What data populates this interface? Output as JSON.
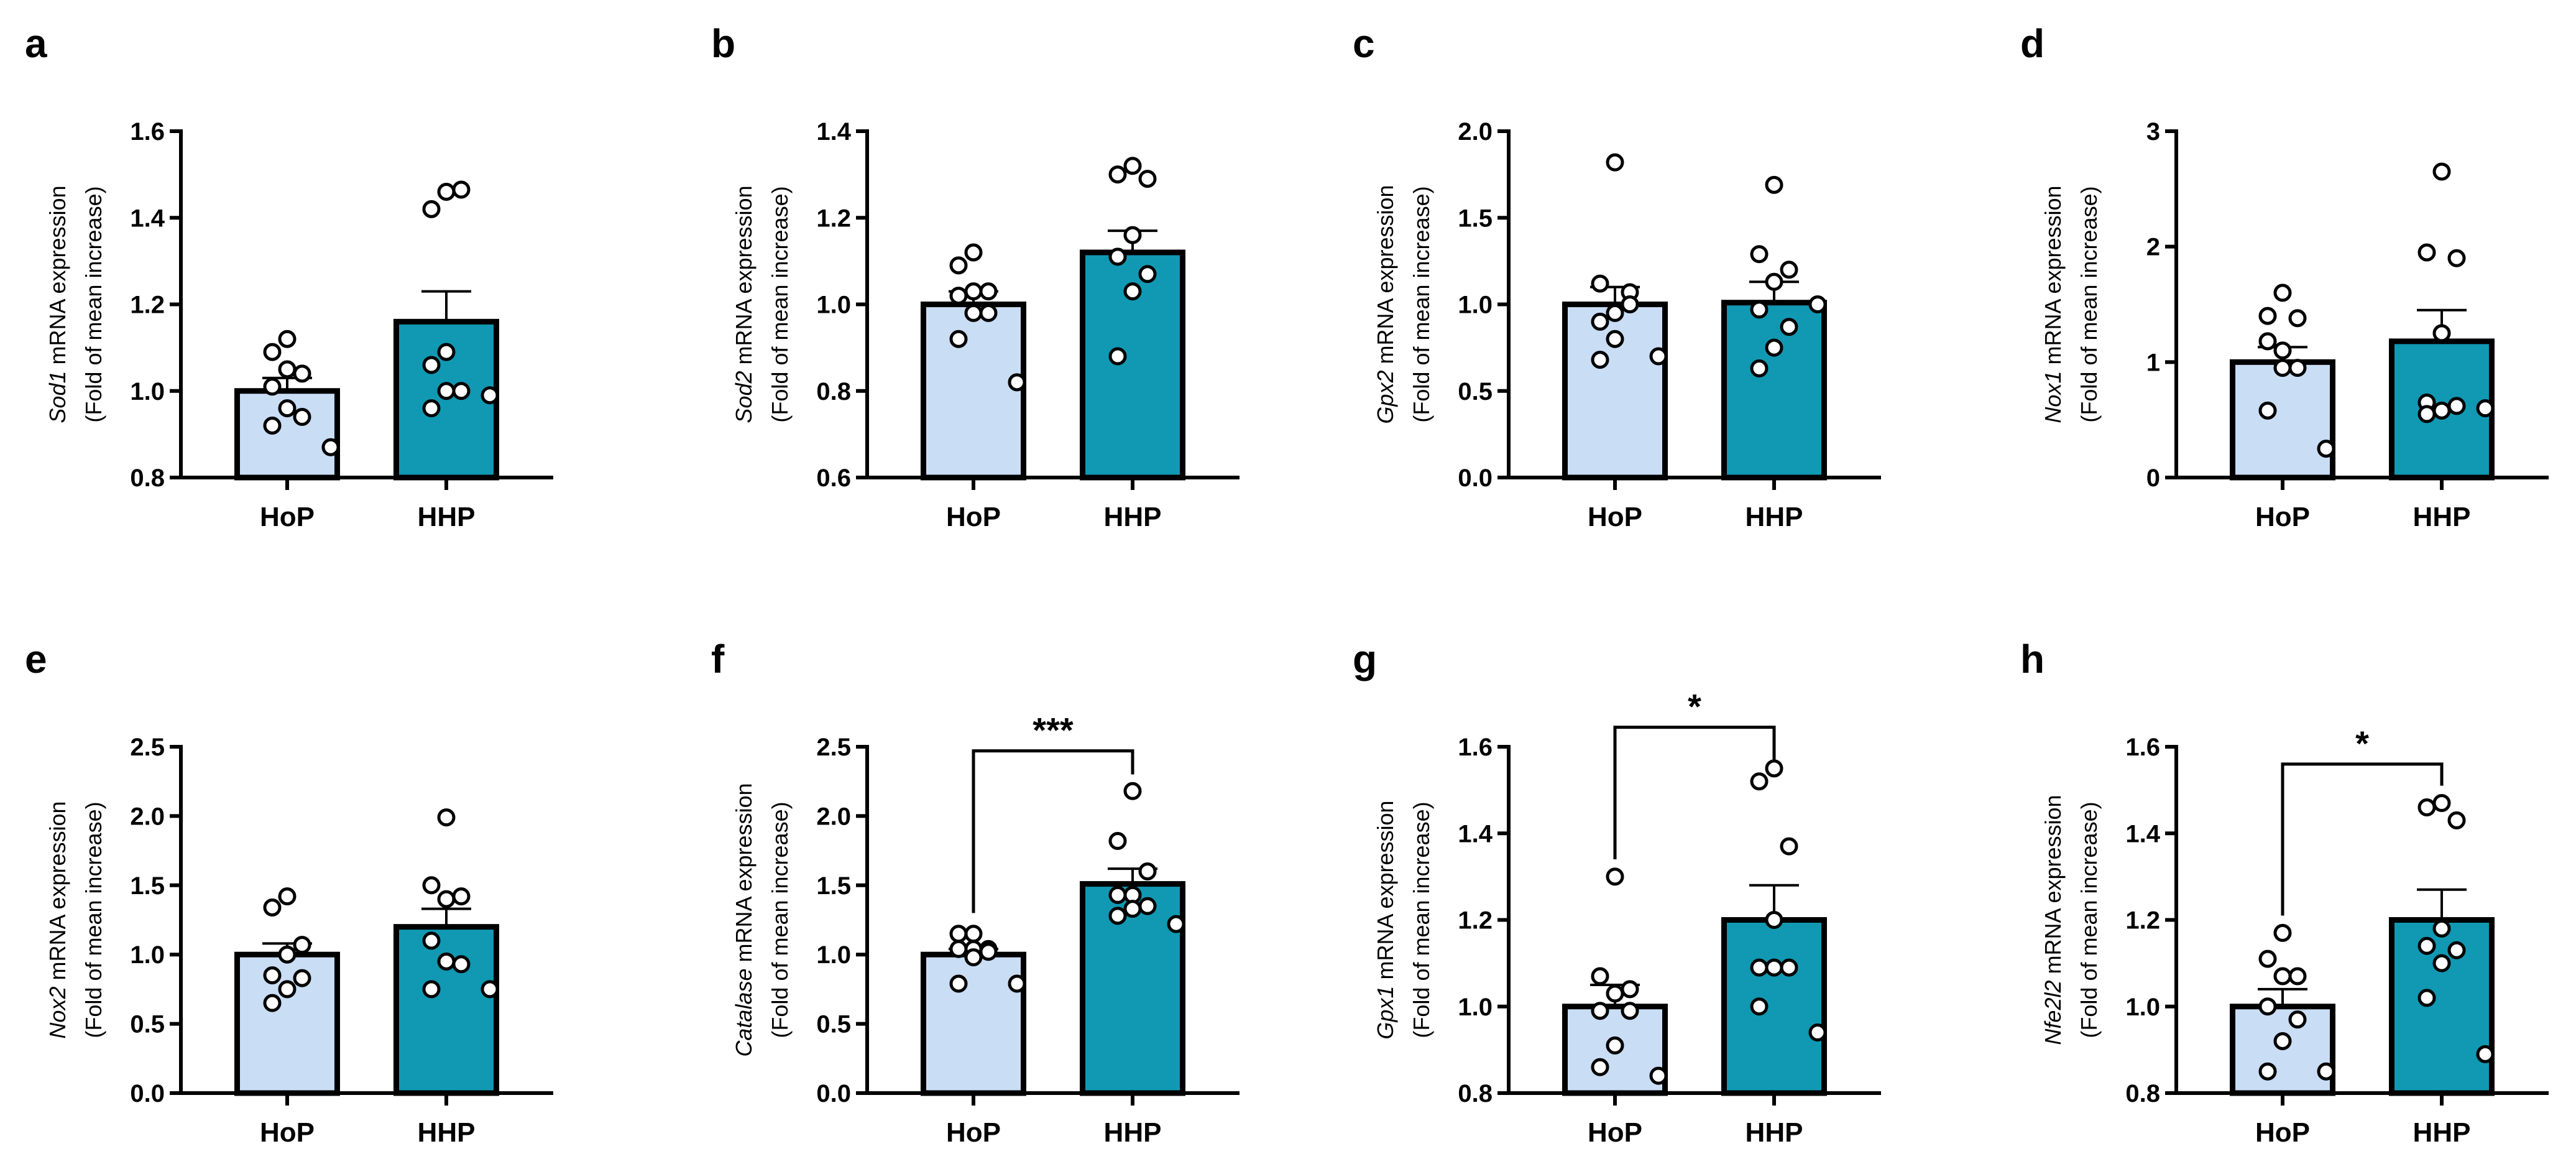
{
  "colors": {
    "HoP": "#c9ddf5",
    "HHP": "#1199b3",
    "axis": "#000000",
    "point_fill": "#ffffff"
  },
  "chart_data": [
    {
      "panel": "a",
      "type": "bar",
      "gene": "Sod1",
      "ylabel_suffix": " mRNA expression",
      "ylabel_line2": "(Fold of mean increase)",
      "categories": [
        "HoP",
        "HHP"
      ],
      "ylim": [
        0.8,
        1.6
      ],
      "yticks": [
        "0.8",
        "1.0",
        "1.2",
        "1.4",
        "1.6"
      ],
      "ytick_values": [
        0.8,
        1.0,
        1.2,
        1.4,
        1.6
      ],
      "means": [
        1.0,
        1.16
      ],
      "sem_upper": [
        1.03,
        1.23
      ],
      "points": [
        [
          1.12,
          1.09,
          1.04,
          1.05,
          1.01,
          0.94,
          0.96,
          0.92,
          0.87
        ],
        [
          1.46,
          1.42,
          1.465,
          1.09,
          1.06,
          1.0,
          1.0,
          0.96,
          0.99
        ]
      ],
      "significance": null
    },
    {
      "panel": "b",
      "type": "bar",
      "gene": "Sod2",
      "ylabel_suffix": " mRNA expression",
      "ylabel_line2": "(Fold of mean increase)",
      "categories": [
        "HoP",
        "HHP"
      ],
      "ylim": [
        0.6,
        1.4
      ],
      "yticks": [
        "0.6",
        "0.8",
        "1.0",
        "1.2",
        "1.4"
      ],
      "ytick_values": [
        0.6,
        0.8,
        1.0,
        1.2,
        1.4
      ],
      "means": [
        1.0,
        1.12
      ],
      "sem_upper": [
        1.03,
        1.17
      ],
      "points": [
        [
          1.12,
          1.09,
          1.03,
          1.03,
          1.02,
          0.98,
          0.98,
          0.92,
          0.82
        ],
        [
          1.32,
          1.3,
          1.29,
          1.16,
          1.11,
          1.07,
          1.03,
          0.88
        ]
      ],
      "significance": null
    },
    {
      "panel": "c",
      "type": "bar",
      "gene": "Gpx2",
      "ylabel_suffix": " mRNA expression",
      "ylabel_line2": "(Fold of mean increase)",
      "categories": [
        "HoP",
        "HHP"
      ],
      "ylim": [
        0,
        2.0
      ],
      "yticks": [
        "0.0",
        "0.5",
        "1.0",
        "1.5",
        "2.0"
      ],
      "ytick_values": [
        0,
        0.5,
        1.0,
        1.5,
        2.0
      ],
      "means": [
        1.0,
        1.01
      ],
      "sem_upper": [
        1.1,
        1.13
      ],
      "points": [
        [
          1.82,
          1.12,
          1.07,
          0.95,
          0.9,
          1.0,
          0.8,
          0.68,
          0.7
        ],
        [
          1.69,
          1.29,
          1.2,
          1.13,
          0.97,
          0.87,
          0.75,
          0.63,
          1.0
        ]
      ],
      "significance": null
    },
    {
      "panel": "d",
      "type": "bar",
      "gene": "Nox1",
      "ylabel_suffix": " mRNA expression",
      "ylabel_line2": "(Fold of mean increase)",
      "categories": [
        "HoP",
        "HHP"
      ],
      "ylim": [
        0,
        3
      ],
      "yticks": [
        "0",
        "1",
        "2",
        "3"
      ],
      "ytick_values": [
        0,
        1,
        2,
        3
      ],
      "means": [
        1.0,
        1.18
      ],
      "sem_upper": [
        1.13,
        1.45
      ],
      "points": [
        [
          1.6,
          1.4,
          1.38,
          1.1,
          1.18,
          0.95,
          0.95,
          0.58,
          0.25
        ],
        [
          2.65,
          1.95,
          1.9,
          1.25,
          0.65,
          0.62,
          0.58,
          0.55,
          0.6
        ]
      ],
      "significance": null
    },
    {
      "panel": "e",
      "type": "bar",
      "gene": "Nox2",
      "ylabel_suffix": " mRNA expression",
      "ylabel_line2": "(Fold of mean increase)",
      "categories": [
        "HoP",
        "HHP"
      ],
      "ylim": [
        0,
        2.5
      ],
      "yticks": [
        "0.0",
        "0.5",
        "1.0",
        "1.5",
        "2.0",
        "2.5"
      ],
      "ytick_values": [
        0,
        0.5,
        1.0,
        1.5,
        2.0,
        2.5
      ],
      "means": [
        1.0,
        1.2
      ],
      "sem_upper": [
        1.08,
        1.33
      ],
      "points": [
        [
          1.42,
          1.34,
          1.07,
          1.0,
          0.85,
          0.83,
          0.75,
          0.65
        ],
        [
          1.99,
          1.5,
          1.42,
          1.4,
          1.1,
          0.93,
          0.95,
          0.75,
          0.75
        ]
      ],
      "significance": null
    },
    {
      "panel": "f",
      "type": "bar",
      "gene": "Catalase",
      "ylabel_suffix": " mRNA expression",
      "ylabel_line2": "(Fold of mean increase)",
      "categories": [
        "HoP",
        "HHP"
      ],
      "ylim": [
        0,
        2.5
      ],
      "yticks": [
        "0.0",
        "0.5",
        "1.0",
        "1.5",
        "2.0",
        "2.5"
      ],
      "ytick_values": [
        0,
        0.5,
        1.0,
        1.5,
        2.0,
        2.5
      ],
      "means": [
        1.0,
        1.51
      ],
      "sem_upper": [
        1.04,
        1.62
      ],
      "points": [
        [
          1.15,
          1.15,
          1.04,
          1.04,
          1.04,
          1.02,
          0.98,
          0.79,
          0.79
        ],
        [
          2.18,
          1.82,
          1.6,
          1.43,
          1.43,
          1.35,
          1.33,
          1.28,
          1.22
        ]
      ],
      "significance": {
        "label": "***",
        "level": 2.47,
        "left_end": 1.3,
        "right_end": 2.3
      }
    },
    {
      "panel": "g",
      "type": "bar",
      "gene": "Gpx1",
      "ylabel_suffix": " mRNA expression",
      "ylabel_line2": "(Fold of mean increase)",
      "categories": [
        "HoP",
        "HHP"
      ],
      "ylim": [
        0.8,
        1.6
      ],
      "yticks": [
        "0.8",
        "1.0",
        "1.2",
        "1.4",
        "1.6"
      ],
      "ytick_values": [
        0.8,
        1.0,
        1.2,
        1.4,
        1.6
      ],
      "means": [
        1.0,
        1.2
      ],
      "sem_upper": [
        1.05,
        1.28
      ],
      "points": [
        [
          1.3,
          1.07,
          1.04,
          1.03,
          0.99,
          0.99,
          0.91,
          0.86,
          0.84
        ],
        [
          1.55,
          1.52,
          1.37,
          1.2,
          1.09,
          1.09,
          1.09,
          1.0,
          0.94
        ]
      ],
      "significance": {
        "label": "*",
        "level": 1.645,
        "left_end": 1.34,
        "right_end": 1.57
      }
    },
    {
      "panel": "h",
      "type": "bar",
      "gene": "Nfe2l2",
      "ylabel_suffix": " mRNA expression",
      "ylabel_line2": "(Fold of mean increase)",
      "categories": [
        "HoP",
        "HHP"
      ],
      "ylim": [
        0.8,
        1.6
      ],
      "yticks": [
        "0.8",
        "1.0",
        "1.2",
        "1.4",
        "1.6"
      ],
      "ytick_values": [
        0.8,
        1.0,
        1.2,
        1.4,
        1.6
      ],
      "means": [
        1.0,
        1.2
      ],
      "sem_upper": [
        1.04,
        1.27
      ],
      "points": [
        [
          1.17,
          1.11,
          1.07,
          1.07,
          1.0,
          0.97,
          0.92,
          0.85,
          0.85
        ],
        [
          1.47,
          1.46,
          1.43,
          1.18,
          1.14,
          1.13,
          1.1,
          1.02,
          0.89
        ]
      ],
      "significance": {
        "label": "*",
        "level": 1.56,
        "left_end": 1.21,
        "right_end": 1.51
      }
    }
  ]
}
